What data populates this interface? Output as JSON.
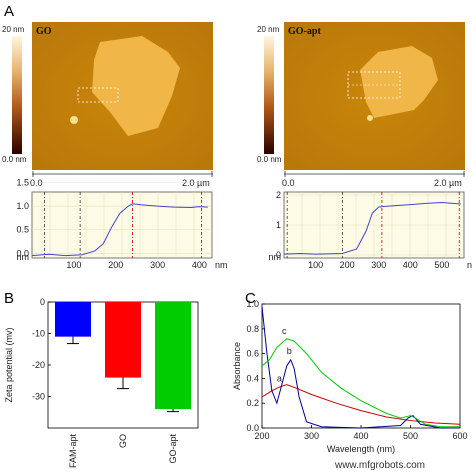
{
  "panels": {
    "A": {
      "label": "A"
    },
    "B": {
      "label": "B"
    },
    "C": {
      "label": "C"
    }
  },
  "afm": {
    "left": {
      "title": "GO",
      "scale_top": "20 nm",
      "scale_bottom": "0.0 nm",
      "x_start": "0.0",
      "x_end": "2.0 µm"
    },
    "right": {
      "title": "GO-apt",
      "scale_top": "20 nm",
      "scale_bottom": "0.0 nm",
      "x_start": "0.0",
      "x_end": "2.0 µm"
    }
  },
  "chart_data": [
    {
      "type": "line",
      "title": "",
      "xlabel": "nm",
      "ylabel": "nm",
      "xlim": [
        0,
        430
      ],
      "ylim": [
        -0.1,
        1.3
      ],
      "x_ticks": [
        "100",
        "200",
        "300",
        "400"
      ],
      "y_ticks": [
        "0.0",
        "0.5",
        "1.0",
        "1.5"
      ],
      "markers": [
        30,
        115,
        240,
        405
      ],
      "series": [
        {
          "x": [
            0,
            40,
            80,
            120,
            150,
            170,
            190,
            210,
            230,
            240,
            260,
            300,
            340,
            380,
            400,
            420
          ],
          "y": [
            -0.05,
            -0.02,
            -0.05,
            -0.03,
            0.05,
            0.2,
            0.55,
            0.85,
            1.0,
            1.05,
            1.03,
            1.0,
            0.98,
            0.97,
            0.99,
            0.98
          ]
        }
      ]
    },
    {
      "type": "line",
      "title": "",
      "xlabel": "nm",
      "ylabel": "nm",
      "xlim": [
        0,
        570
      ],
      "ylim": [
        -0.1,
        2.1
      ],
      "x_ticks": [
        "100",
        "200",
        "300",
        "400",
        "500"
      ],
      "y_ticks": [
        "0",
        "1",
        "2"
      ],
      "markers": [
        10,
        185,
        310,
        555
      ],
      "series": [
        {
          "x": [
            0,
            50,
            100,
            150,
            185,
            230,
            260,
            280,
            300,
            320,
            360,
            400,
            450,
            500,
            560
          ],
          "y": [
            0.03,
            0.05,
            0.03,
            0.04,
            0.05,
            0.2,
            0.8,
            1.4,
            1.6,
            1.62,
            1.65,
            1.68,
            1.72,
            1.75,
            1.7
          ]
        }
      ]
    },
    {
      "type": "bar",
      "title": "",
      "xlabel": "",
      "ylabel": "Zeta potential (mv)",
      "categories": [
        "FAM-apt",
        "GO",
        "GO-apt"
      ],
      "values": [
        -11,
        -24,
        -34
      ],
      "errors": [
        2.2,
        3.5,
        0.8
      ],
      "colors": [
        "#0000ff",
        "#ff0000",
        "#00cc00"
      ],
      "ylim": [
        -40,
        0
      ],
      "y_ticks": [
        "0",
        "-10",
        "-20",
        "-30"
      ]
    },
    {
      "type": "line",
      "title": "",
      "xlabel": "Wavelength (nm)",
      "ylabel": "Absorbance",
      "xlim": [
        200,
        600
      ],
      "ylim": [
        0.0,
        1.0
      ],
      "x_ticks": [
        "200",
        "300",
        "400",
        "500",
        "600"
      ],
      "y_ticks": [
        "0.0",
        "0.2",
        "0.4",
        "0.6",
        "0.8",
        "1.0"
      ],
      "series": [
        {
          "name": "a",
          "color": "#cc0000",
          "x": [
            200,
            220,
            235,
            250,
            270,
            300,
            350,
            400,
            450,
            500,
            550,
            600
          ],
          "y": [
            0.25,
            0.3,
            0.33,
            0.35,
            0.32,
            0.27,
            0.2,
            0.14,
            0.09,
            0.06,
            0.04,
            0.03
          ]
        },
        {
          "name": "b",
          "color": "#000099",
          "x": [
            200,
            210,
            220,
            230,
            240,
            250,
            258,
            265,
            275,
            290,
            320,
            400,
            480,
            495,
            505,
            520,
            560,
            600
          ],
          "y": [
            0.98,
            0.6,
            0.3,
            0.2,
            0.35,
            0.5,
            0.55,
            0.48,
            0.25,
            0.05,
            0.01,
            0.0,
            0.02,
            0.08,
            0.1,
            0.03,
            0.0,
            0.0
          ]
        },
        {
          "name": "c",
          "color": "#00cc00",
          "x": [
            200,
            215,
            230,
            250,
            265,
            290,
            320,
            360,
            400,
            450,
            480,
            500,
            510,
            530,
            560,
            600
          ],
          "y": [
            0.5,
            0.55,
            0.65,
            0.72,
            0.7,
            0.6,
            0.45,
            0.32,
            0.22,
            0.12,
            0.08,
            0.1,
            0.08,
            0.03,
            0.01,
            0.01
          ]
        }
      ]
    }
  ],
  "watermark": "www.mfgrobots.com"
}
